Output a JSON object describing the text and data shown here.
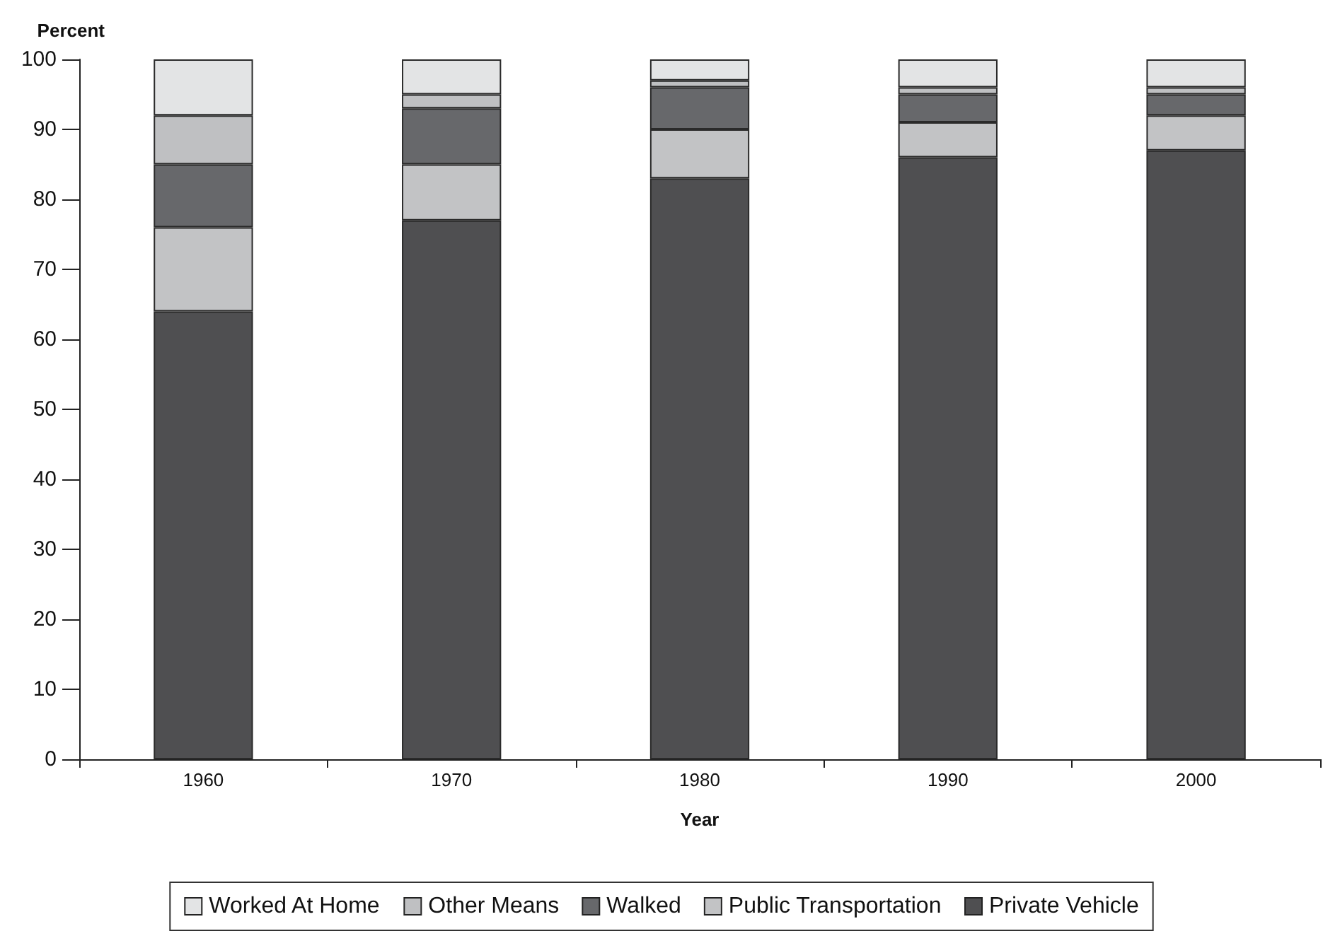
{
  "chart_data": {
    "type": "bar",
    "stacked": true,
    "xlabel": "Year",
    "ylabel": "Percent",
    "categories": [
      "1960",
      "1970",
      "1980",
      "1990",
      "2000"
    ],
    "series": [
      {
        "name": "Private Vehicle",
        "color": "#4f4f51",
        "values": [
          64,
          77,
          83,
          86,
          87
        ]
      },
      {
        "name": "Public Transportation",
        "color": "#c2c3c5",
        "values": [
          12,
          8,
          7,
          5,
          5
        ]
      },
      {
        "name": "Walked",
        "color": "#67686b",
        "values": [
          9,
          8,
          6,
          4,
          3
        ]
      },
      {
        "name": "Other Means",
        "color": "#bfc0c2",
        "values": [
          7,
          2,
          1,
          1,
          1
        ]
      },
      {
        "name": "Worked At Home",
        "color": "#e3e4e5",
        "values": [
          8,
          5,
          3,
          4,
          4
        ]
      }
    ],
    "ylim": [
      0,
      100
    ],
    "yticks": [
      0,
      10,
      20,
      30,
      40,
      50,
      60,
      70,
      80,
      90,
      100
    ],
    "grid": false,
    "legend": "bottom"
  }
}
